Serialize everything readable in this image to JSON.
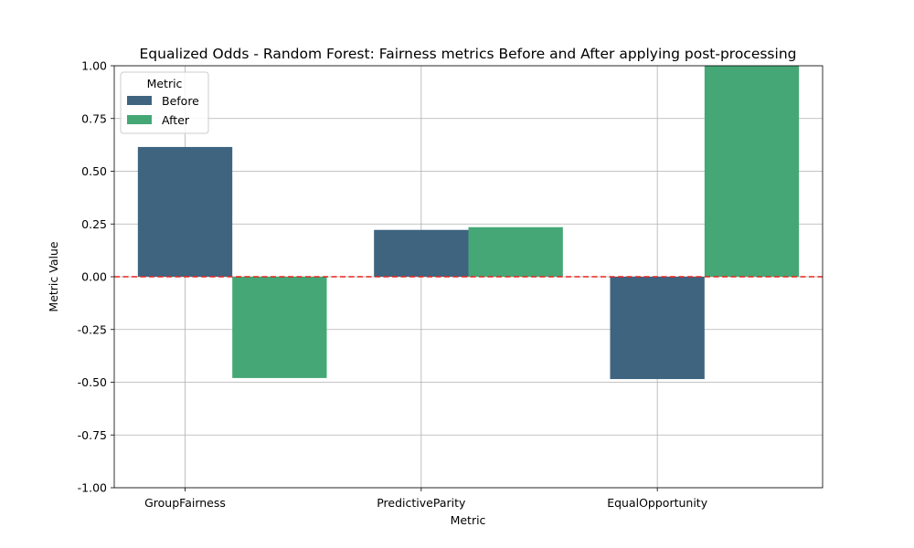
{
  "chart_data": {
    "type": "bar",
    "title": "Equalized Odds - Random Forest: Fairness metrics Before and After applying post-processing",
    "xlabel": "Metric",
    "ylabel": "Metric Value",
    "categories": [
      "GroupFairness",
      "PredictiveParity",
      "EqualOpportunity"
    ],
    "series": [
      {
        "name": "Before",
        "color": "#3e6480",
        "values": [
          0.615,
          0.222,
          -0.485
        ]
      },
      {
        "name": "After",
        "color": "#45a776",
        "values": [
          -0.48,
          0.235,
          1.0
        ]
      }
    ],
    "ylim": [
      -1.0,
      1.0
    ],
    "yticks": [
      "-1.00",
      "-0.75",
      "-0.50",
      "-0.25",
      "0.00",
      "0.25",
      "0.50",
      "0.75",
      "1.00"
    ],
    "ytick_values": [
      -1.0,
      -0.75,
      -0.5,
      -0.25,
      0.0,
      0.25,
      0.5,
      0.75,
      1.0
    ],
    "grid": true,
    "reference_line": {
      "y": 0.0,
      "color": "#e8231d",
      "style": "dashed"
    },
    "legend": {
      "title": "Metric",
      "position": "top-left"
    }
  }
}
